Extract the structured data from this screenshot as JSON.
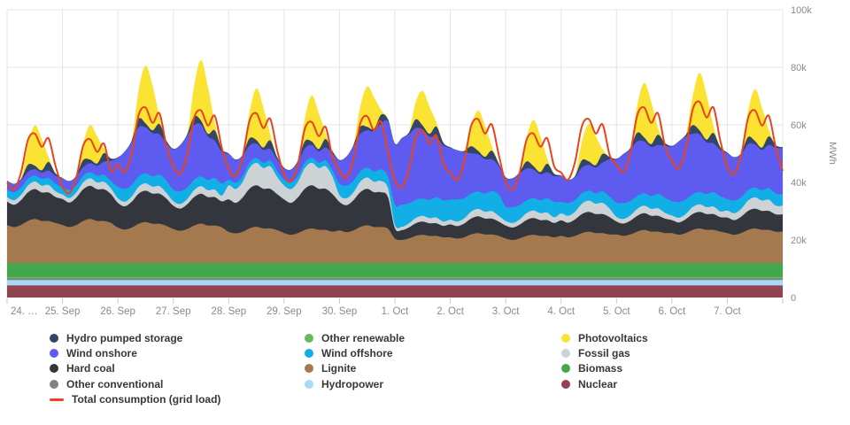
{
  "page": {
    "background": "#ffffff"
  },
  "y_axis": {
    "unit_label": "MWh",
    "tick_labels": [
      "0",
      "20k",
      "40k",
      "60k",
      "80k",
      "100k"
    ],
    "tick_values": [
      0,
      20,
      40,
      60,
      80,
      100
    ],
    "note": "values plotted in thousands of MWh"
  },
  "x_axis": {
    "labels": [
      "24. …",
      "25. Sep",
      "26. Sep",
      "27. Sep",
      "28. Sep",
      "29. Sep",
      "30. Sep",
      "1. Oct",
      "2. Oct",
      "3. Oct",
      "4. Oct",
      "5. Oct",
      "6. Oct",
      "7. Oct"
    ]
  },
  "legend": {
    "columns": [
      {
        "items": [
          {
            "label": "Hydro pumped storage",
            "color": "#334666",
            "marker": "dot"
          },
          {
            "label": "Wind onshore",
            "color": "#5e5cf0",
            "marker": "dot"
          },
          {
            "label": "Hard coal",
            "color": "#33363c",
            "marker": "dot"
          },
          {
            "label": "Other conventional",
            "color": "#7d8288",
            "marker": "dot"
          },
          {
            "label": "Total consumption (grid load)",
            "color": "#e8431c",
            "marker": "line"
          }
        ]
      },
      {
        "items": [
          {
            "label": "Other renewable",
            "color": "#68bb58",
            "marker": "dot"
          },
          {
            "label": "Wind offshore",
            "color": "#12aee6",
            "marker": "dot"
          },
          {
            "label": "Lignite",
            "color": "#a5794e",
            "marker": "dot"
          },
          {
            "label": "Hydropower",
            "color": "#a8d9f5",
            "marker": "dot"
          }
        ]
      },
      {
        "items": [
          {
            "label": "Photovoltaics",
            "color": "#fbe334",
            "marker": "dot"
          },
          {
            "label": "Fossil gas",
            "color": "#cdd2d4",
            "marker": "dot"
          },
          {
            "label": "Biomass",
            "color": "#42a74d",
            "marker": "dot"
          },
          {
            "label": "Nuclear",
            "color": "#8f4450",
            "marker": "dot"
          }
        ]
      }
    ]
  },
  "chart_data": {
    "type": "area",
    "stacked": true,
    "unit": "MWh",
    "values_scale": "thousands (k MWh)",
    "x_start": "24. Sep 00:00",
    "x_end": "8. Oct 00:00",
    "sample_interval_hours": 3,
    "days": 14,
    "ylim": [
      0,
      100
    ],
    "grid": true,
    "legend_position": "bottom",
    "x_labels": [
      "24. …",
      "25. Sep",
      "26. Sep",
      "27. Sep",
      "28. Sep",
      "29. Sep",
      "30. Sep",
      "1. Oct",
      "2. Oct",
      "3. Oct",
      "4. Oct",
      "5. Oct",
      "6. Oct",
      "7. Oct"
    ],
    "series": [
      {
        "name": "Nuclear",
        "color": "#8f4450",
        "constant": 4.2
      },
      {
        "name": "Hydropower",
        "color": "#a8d9f5",
        "constant": 1.9
      },
      {
        "name": "Other conventional",
        "color": "#7d8288",
        "constant": 0.6
      },
      {
        "name": "Other renewable",
        "color": "#68bb58",
        "constant": 0.4
      },
      {
        "name": "Biomass",
        "color": "#42a74d",
        "constant": 4.8
      },
      {
        "name": "Lignite",
        "color": "#a5794e",
        "values": [
          13.3,
          12.6,
          13.3,
          14.7,
          15.4,
          14.7,
          14.7,
          14,
          13.3,
          12.6,
          13.3,
          14.7,
          15.4,
          14.7,
          14.7,
          14,
          12.4,
          11.7,
          12.4,
          13.7,
          14.3,
          13.7,
          13.7,
          13,
          11.9,
          11.3,
          11.9,
          13.1,
          13.8,
          13.1,
          13.1,
          12.5,
          10.9,
          10.4,
          10.9,
          12.1,
          12.7,
          12.1,
          12.1,
          11.5,
          10.5,
          9.9,
          10.5,
          11.6,
          12.1,
          11.6,
          11.6,
          11,
          11.4,
          10.8,
          11.4,
          12.6,
          13.2,
          12.6,
          12.6,
          12,
          8.6,
          8.1,
          8.6,
          9.5,
          9.9,
          9.5,
          9.5,
          9,
          9,
          8.6,
          9,
          10,
          10.5,
          10,
          10,
          9.5,
          8.6,
          8.1,
          8.6,
          9.5,
          9.9,
          9.5,
          9.5,
          9,
          9.5,
          9,
          9.5,
          10.5,
          11,
          10.5,
          10.5,
          10,
          10,
          9.5,
          10,
          11,
          11.6,
          11,
          11,
          10.5,
          10.5,
          9.9,
          10.5,
          11.6,
          12.1,
          11.6,
          11.6,
          11,
          10.5,
          9.9,
          10.5,
          11.6,
          12.1,
          11.6,
          11.6,
          11,
          11
        ]
      },
      {
        "name": "Hard coal",
        "color": "#33363c",
        "values": [
          8.1,
          7.7,
          8.6,
          9.9,
          10.4,
          9.9,
          9.9,
          9,
          9,
          8.5,
          9.5,
          11,
          11.5,
          11,
          11,
          10,
          8.6,
          8.1,
          9,
          10.5,
          10.9,
          10.5,
          10.5,
          9.5,
          8.1,
          7.7,
          8.6,
          9.9,
          10.4,
          9.9,
          9.9,
          9,
          11.3,
          10.6,
          11.9,
          13.8,
          14.4,
          13.8,
          13.8,
          12.5,
          11.7,
          11.1,
          12.4,
          14.3,
          15,
          14.3,
          14.3,
          13,
          9.9,
          9.4,
          10.5,
          12.1,
          12.7,
          12.1,
          12.1,
          11,
          3.6,
          3.4,
          3.8,
          4.4,
          4.6,
          4.4,
          4.4,
          4,
          4.5,
          4.3,
          4.8,
          5.5,
          5.8,
          5.5,
          5.5,
          5,
          4.5,
          4.3,
          4.8,
          5.5,
          5.8,
          5.5,
          5.5,
          5,
          5.4,
          5.1,
          5.7,
          6.6,
          6.9,
          6.6,
          6.6,
          6,
          4.5,
          4.3,
          4.8,
          5.5,
          5.8,
          5.5,
          5.5,
          5,
          4.5,
          4.3,
          4.8,
          5.5,
          5.8,
          5.5,
          5.5,
          5,
          5.4,
          5.1,
          5.7,
          6.6,
          6.9,
          6.6,
          6.6,
          6,
          6
        ]
      },
      {
        "name": "Fossil gas",
        "color": "#cdd2d4",
        "values": [
          1.6,
          1.6,
          1.8,
          2.4,
          2.6,
          2.4,
          2.6,
          2,
          1.6,
          1.6,
          1.8,
          2.4,
          2.6,
          2.4,
          2.6,
          2,
          1.6,
          1.6,
          1.8,
          2.4,
          2.6,
          2.4,
          2.6,
          2,
          1.6,
          1.6,
          1.8,
          2.4,
          2.6,
          2.4,
          2.6,
          2,
          4.8,
          4.8,
          5.4,
          7.2,
          7.8,
          7.2,
          7.8,
          6,
          4.8,
          4.8,
          5.4,
          7.2,
          7.8,
          7.2,
          7.8,
          6,
          2.4,
          2.4,
          2.7,
          3.6,
          3.9,
          3.6,
          3.9,
          3,
          1.2,
          1.2,
          1.4,
          1.8,
          2,
          1.8,
          2,
          1.5,
          1.6,
          1.6,
          1.8,
          2.4,
          2.6,
          2.4,
          2.6,
          2,
          1.6,
          1.6,
          1.8,
          2.4,
          2.6,
          2.4,
          2.6,
          2,
          2.4,
          2.4,
          2.7,
          3.6,
          3.9,
          3.6,
          3.9,
          3,
          1.6,
          1.6,
          1.8,
          2.4,
          2.6,
          2.4,
          2.6,
          2,
          1.6,
          1.6,
          1.8,
          2.4,
          2.6,
          2.4,
          2.6,
          2,
          2.4,
          2.4,
          2.7,
          3.6,
          3.9,
          3.6,
          3.9,
          3,
          3
        ]
      },
      {
        "name": "Wind offshore",
        "color": "#12aee6",
        "values": [
          2.5,
          2.8,
          2.5,
          2.3,
          2.1,
          2.3,
          2.5,
          2.6,
          2.5,
          2.8,
          2.5,
          2.3,
          2.1,
          2.3,
          2.5,
          2.6,
          4,
          4.4,
          4,
          3.6,
          3.4,
          3.6,
          4,
          4.2,
          4,
          4.4,
          4,
          3.6,
          3.4,
          3.6,
          4,
          4.2,
          2,
          2.2,
          2,
          1.8,
          1.7,
          1.8,
          2,
          2.1,
          2,
          2.2,
          2,
          1.8,
          1.7,
          1.8,
          2,
          2.1,
          4,
          4.4,
          4,
          3.6,
          3.4,
          3.6,
          4,
          4.2,
          7,
          7.7,
          7,
          6.3,
          6,
          6.3,
          7,
          7.4,
          7,
          7.7,
          7,
          6.3,
          6,
          6.3,
          7,
          7.4,
          5,
          5.5,
          5,
          4.5,
          4.3,
          4.5,
          5,
          5.3,
          4,
          4.4,
          4,
          3.6,
          3.4,
          3.6,
          4,
          4.2,
          5,
          5.5,
          5,
          4.5,
          4.3,
          4.5,
          5,
          5.3,
          5,
          5.5,
          5,
          4.5,
          4.3,
          4.5,
          5,
          5.3,
          4,
          4.4,
          4,
          3.6,
          3.4,
          3.6,
          4,
          4.2,
          4
        ]
      },
      {
        "name": "Wind onshore",
        "color": "#5e5cf0",
        "values": [
          3,
          2.8,
          2.6,
          2.4,
          2.2,
          2.2,
          2.5,
          2.8,
          3,
          3,
          3,
          3,
          3.2,
          3.5,
          4.5,
          7,
          10,
          13,
          15,
          17,
          16,
          15,
          14,
          13,
          14,
          16,
          18,
          19,
          18,
          15,
          13,
          11,
          9,
          8,
          7,
          6,
          5,
          4.5,
          4,
          4,
          4,
          4.5,
          5,
          5,
          4.5,
          4,
          4.5,
          6,
          8,
          10,
          12,
          13,
          13,
          14,
          16,
          19,
          21,
          23,
          24,
          25,
          24,
          22,
          21,
          19,
          18,
          17,
          16,
          14,
          13,
          12,
          11,
          10,
          10,
          10,
          11,
          11,
          10,
          9,
          9,
          9,
          9,
          8,
          8,
          9,
          9,
          9,
          10,
          13,
          15,
          17,
          18,
          19,
          18,
          17,
          17,
          18,
          19,
          21,
          22,
          21,
          20,
          18,
          17,
          16,
          16,
          15,
          15,
          16,
          15,
          14,
          15,
          16,
          16
        ]
      },
      {
        "name": "Hydro pumped storage",
        "color": "#334666",
        "values": [
          0.2,
          0.1,
          0.4,
          2.5,
          1.2,
          0.8,
          3,
          0.8,
          0.2,
          0.1,
          0.4,
          2.5,
          1.2,
          0.8,
          3,
          0.8,
          0.2,
          0.1,
          0.5,
          3,
          1.4,
          1,
          3.6,
          1,
          0.2,
          0.1,
          0.5,
          3,
          1.4,
          1,
          3.6,
          1,
          0.2,
          0.1,
          0.4,
          2.5,
          1.2,
          0.8,
          3,
          0.8,
          0.2,
          0.1,
          0.4,
          2.5,
          1.2,
          0.8,
          3,
          0.8,
          0.2,
          0.1,
          0.4,
          2.5,
          1.2,
          0.8,
          3,
          0.8,
          0.2,
          0.1,
          0.5,
          3,
          1.4,
          1,
          3.6,
          1,
          0.2,
          0.1,
          0.4,
          2.5,
          1.2,
          0.8,
          3,
          0.8,
          0.2,
          0.1,
          0.4,
          2.5,
          1.2,
          0.8,
          3,
          0.8,
          0.2,
          0.1,
          0.4,
          2.5,
          1.2,
          0.8,
          3,
          0.8,
          0.2,
          0.1,
          0.5,
          3,
          1.4,
          1,
          3.6,
          1,
          0.2,
          0.1,
          0.5,
          3,
          1.4,
          1,
          3.6,
          1,
          0.2,
          0.1,
          0.4,
          2.5,
          1.2,
          0.8,
          3,
          0.8,
          0.3
        ]
      },
      {
        "name": "Photovoltaics",
        "color": "#fbe334",
        "values": [
          0,
          0,
          0,
          7,
          14,
          10.9,
          1.7,
          0,
          0,
          0,
          0,
          6,
          12,
          9.4,
          1.4,
          0,
          0,
          0,
          0,
          10,
          20,
          15.6,
          2.4,
          0,
          0,
          0,
          0,
          10.5,
          21,
          16.4,
          2.5,
          0,
          0,
          0,
          0,
          9,
          18,
          14,
          2.2,
          0,
          0,
          0,
          0,
          8,
          16,
          12.5,
          1.9,
          0,
          0,
          0,
          0,
          7,
          14,
          10.9,
          1.7,
          0,
          0,
          0,
          0,
          6,
          12,
          9.4,
          1.4,
          0,
          0,
          0,
          0,
          7,
          14,
          10.9,
          1.7,
          0,
          0,
          0,
          0,
          8,
          16,
          12.5,
          1.9,
          0,
          0,
          0,
          0,
          6.5,
          13,
          10.1,
          1.6,
          0,
          0,
          0,
          0,
          9.5,
          19,
          14.8,
          2.3,
          0,
          0,
          0,
          0,
          10,
          20,
          15.6,
          2.4,
          0,
          0,
          0,
          0,
          9,
          18,
          14,
          2.2,
          0,
          0
        ]
      }
    ],
    "line_series": {
      "name": "Total consumption (grid load)",
      "color": "#e8431c",
      "values": [
        39.9,
        37.6,
        43.3,
        54.7,
        57,
        52.4,
        55.3,
        45.6,
        38.5,
        36.3,
        41.8,
        52.8,
        55,
        50.6,
        53.4,
        44,
        46.2,
        43.6,
        50.2,
        63.4,
        66,
        60.7,
        64,
        52.8,
        45.5,
        42.9,
        49.4,
        62.4,
        65,
        59.8,
        63.1,
        52,
        44.8,
        42.2,
        48.6,
        61.4,
        64,
        58.9,
        62.1,
        51.2,
        42.7,
        40.3,
        46.4,
        58.6,
        61,
        56.1,
        59.2,
        48.8,
        44.1,
        41.6,
        47.9,
        60.5,
        63,
        58,
        61.1,
        50.4,
        40.6,
        38.3,
        44.1,
        55.7,
        58,
        53.4,
        56.3,
        46.4,
        43.4,
        40.9,
        47.1,
        59.5,
        62,
        57,
        60.1,
        49.6,
        39.9,
        37.6,
        43.3,
        54.7,
        57,
        52.4,
        55.3,
        45.6,
        43.4,
        40.9,
        47.1,
        59.5,
        62,
        57,
        60.1,
        49.6,
        46.2,
        43.6,
        50.2,
        63.4,
        66,
        60.7,
        64,
        52.8,
        47.6,
        44.9,
        51.7,
        65.3,
        68,
        62.6,
        66,
        54.4,
        45.5,
        42.9,
        49.4,
        62.4,
        65,
        59.8,
        63.1,
        52,
        44
      ]
    },
    "colors": {
      "grid": "#e4e4e4",
      "tick": "#c9c9c9",
      "axis_text": "#8a8a8a"
    }
  }
}
